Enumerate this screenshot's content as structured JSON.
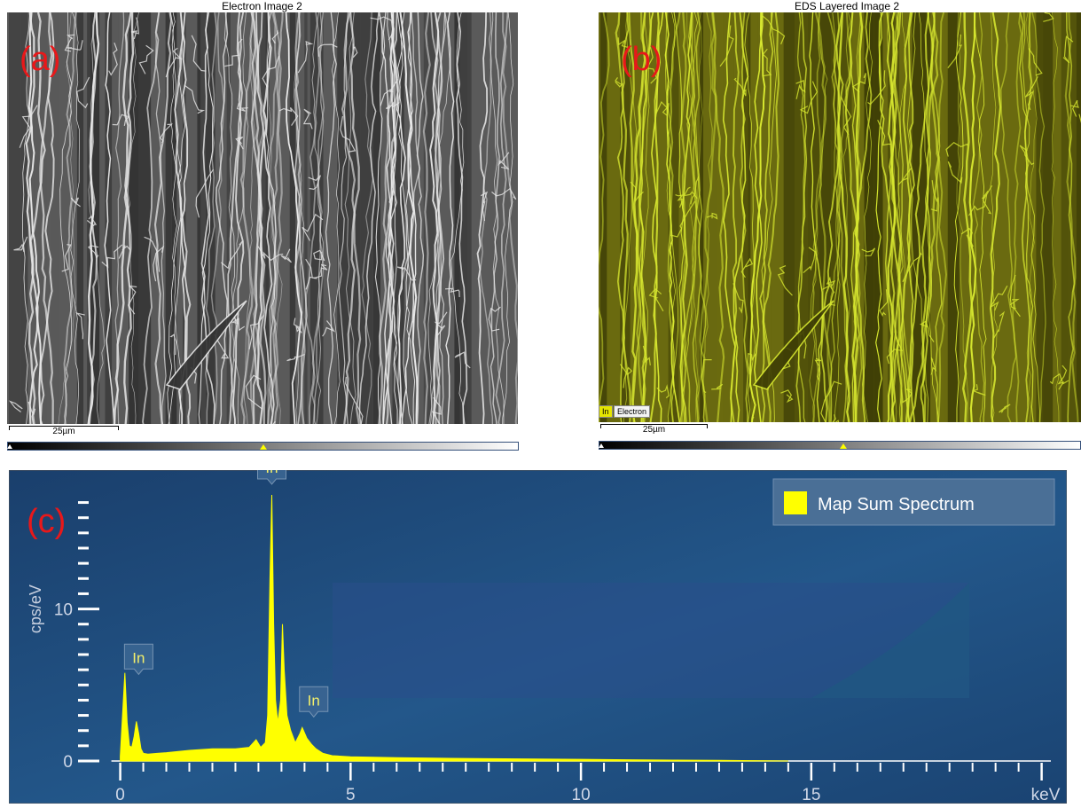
{
  "panel_a": {
    "title": "Electron Image 2",
    "letter": "(a)",
    "scale_label": "25µm"
  },
  "panel_b": {
    "title": "EDS Layered Image 2",
    "letter": "(b)",
    "scale_label": "25µm",
    "chips": [
      "In",
      "Electron"
    ],
    "layer_color": "#c8c800"
  },
  "panel_c": {
    "letter": "(c)"
  },
  "chart_data": {
    "type": "line",
    "xlabel": "keV",
    "ylabel": "cps/eV",
    "xlim": [
      -0.3,
      20.2
    ],
    "ylim": [
      0,
      17.5
    ],
    "x_ticks": [
      "0",
      "5",
      "10",
      "15"
    ],
    "y_ticks": [
      "0",
      "10"
    ],
    "series": [
      {
        "name": "Map Sum Spectrum",
        "color": "#ffff00",
        "x": [
          0.0,
          0.1,
          0.15,
          0.2,
          0.25,
          0.3,
          0.35,
          0.4,
          0.45,
          0.5,
          0.6,
          0.8,
          1.0,
          1.5,
          2.0,
          2.5,
          2.8,
          2.95,
          3.05,
          3.15,
          3.2,
          3.25,
          3.29,
          3.33,
          3.37,
          3.42,
          3.48,
          3.52,
          3.56,
          3.62,
          3.7,
          3.8,
          3.9,
          3.95,
          4.05,
          4.15,
          4.25,
          4.4,
          4.6,
          5.0,
          6.0,
          7.0,
          8.0,
          9.0,
          10.0,
          11.0,
          12.0,
          13.0,
          14.0,
          14.5
        ],
        "values": [
          0.3,
          5.8,
          2.5,
          1.0,
          0.9,
          1.6,
          2.6,
          1.8,
          0.8,
          0.5,
          0.45,
          0.5,
          0.55,
          0.7,
          0.8,
          0.8,
          0.9,
          1.4,
          0.9,
          1.2,
          3.0,
          12.0,
          17.5,
          9.0,
          4.0,
          2.5,
          4.0,
          9.0,
          6.0,
          3.0,
          2.0,
          1.2,
          1.8,
          2.2,
          1.5,
          1.1,
          0.8,
          0.5,
          0.35,
          0.28,
          0.22,
          0.18,
          0.15,
          0.13,
          0.11,
          0.08,
          0.06,
          0.04,
          0.02,
          0.0
        ]
      }
    ],
    "peak_labels": [
      {
        "text": "In",
        "x": 0.4,
        "y": 5.0
      },
      {
        "text": "In",
        "x": 3.29,
        "y": 17.5
      },
      {
        "text": "In",
        "x": 4.2,
        "y": 2.2
      }
    ],
    "legend": {
      "label": "Map Sum Spectrum",
      "placement": "top-right",
      "color": "#ffff00"
    },
    "background": "#1d4677"
  }
}
